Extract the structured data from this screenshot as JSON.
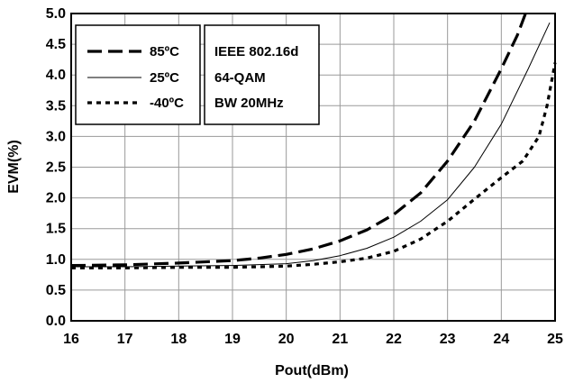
{
  "chart_data": {
    "type": "line",
    "xlabel": "Pout(dBm)",
    "ylabel": "EVM(%)",
    "xlim": [
      16,
      25
    ],
    "ylim": [
      0,
      5
    ],
    "x_ticks": [
      "16",
      "17",
      "18",
      "19",
      "20",
      "21",
      "22",
      "23",
      "24",
      "25"
    ],
    "y_ticks": [
      "0.0",
      "0.5",
      "1.0",
      "1.5",
      "2.0",
      "2.5",
      "3.0",
      "3.5",
      "4.0",
      "4.5",
      "5.0"
    ],
    "grid": true,
    "legend_position": "top-left",
    "series": [
      {
        "name": "85ºC",
        "style": "long-dash",
        "x": [
          16,
          17,
          18,
          19,
          19.5,
          20,
          20.5,
          21,
          21.5,
          22,
          22.5,
          23,
          23.5,
          24,
          24.3,
          24.45
        ],
        "y": [
          0.9,
          0.91,
          0.94,
          0.98,
          1.02,
          1.08,
          1.17,
          1.3,
          1.48,
          1.73,
          2.08,
          2.6,
          3.25,
          4.1,
          4.65,
          5.0
        ]
      },
      {
        "name": "25ºC",
        "style": "solid-thin",
        "x": [
          16,
          17,
          18,
          19,
          20,
          20.5,
          21,
          21.5,
          22,
          22.5,
          23,
          23.5,
          24,
          24.5,
          24.9
        ],
        "y": [
          0.88,
          0.88,
          0.89,
          0.9,
          0.93,
          0.98,
          1.06,
          1.18,
          1.36,
          1.62,
          1.97,
          2.5,
          3.2,
          4.1,
          4.85
        ]
      },
      {
        "name": "-40ºC",
        "style": "short-dash",
        "x": [
          16,
          17,
          18,
          19,
          20,
          20.5,
          21,
          21.5,
          22,
          22.5,
          23,
          23.5,
          24,
          24.4,
          24.7,
          24.85,
          25
        ],
        "y": [
          0.86,
          0.86,
          0.87,
          0.87,
          0.89,
          0.92,
          0.96,
          1.02,
          1.13,
          1.33,
          1.62,
          1.98,
          2.33,
          2.6,
          3.0,
          3.5,
          4.2
        ]
      }
    ],
    "annotation_lines": [
      "IEEE 802.16d",
      "64-QAM",
      "BW 20MHz"
    ]
  }
}
